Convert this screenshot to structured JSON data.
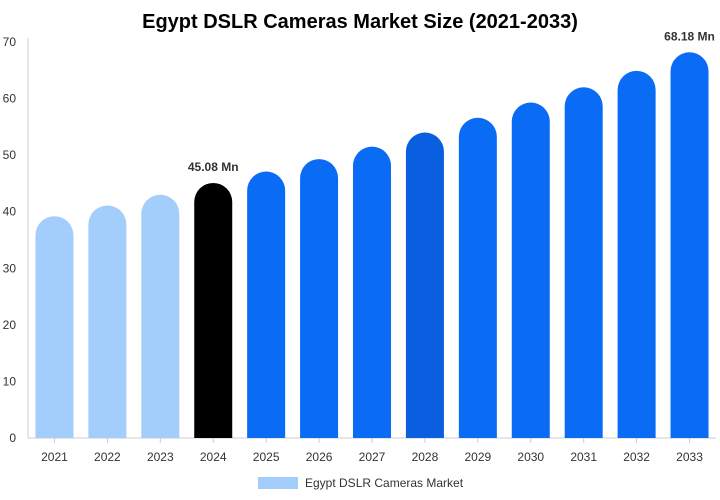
{
  "chart_data": {
    "type": "bar",
    "title": "Egypt DSLR Cameras Market Size (2021-2033)",
    "categories": [
      "2021",
      "2022",
      "2023",
      "2024",
      "2025",
      "2026",
      "2027",
      "2028",
      "2029",
      "2030",
      "2031",
      "2032",
      "2033"
    ],
    "series": [
      {
        "name": "Egypt DSLR Cameras Market",
        "values": [
          39.2,
          41.1,
          43.0,
          45.08,
          47.1,
          49.3,
          51.5,
          54.0,
          56.6,
          59.3,
          62.0,
          64.9,
          68.18
        ]
      }
    ],
    "ylim": [
      0,
      70
    ],
    "yticks": [
      0,
      10,
      20,
      30,
      40,
      50,
      60,
      70
    ],
    "grid": false,
    "legend": "bottom",
    "annotations": [
      {
        "category": "2024",
        "text": "45.08 Mn"
      },
      {
        "category": "2033",
        "text": "68.18 Mn"
      }
    ],
    "bar_colors": [
      "#a3cdfb",
      "#a3cdfb",
      "#a3cdfb",
      "#000000",
      "#0a6cf5",
      "#0a6cf5",
      "#0a6cf5",
      "#0a5fe0",
      "#0a6cf5",
      "#0a6cf5",
      "#0a6cf5",
      "#0a6cf5",
      "#0a6cf5"
    ],
    "legend_color": "#a3cdfb",
    "axis_color": "#cccccc"
  }
}
